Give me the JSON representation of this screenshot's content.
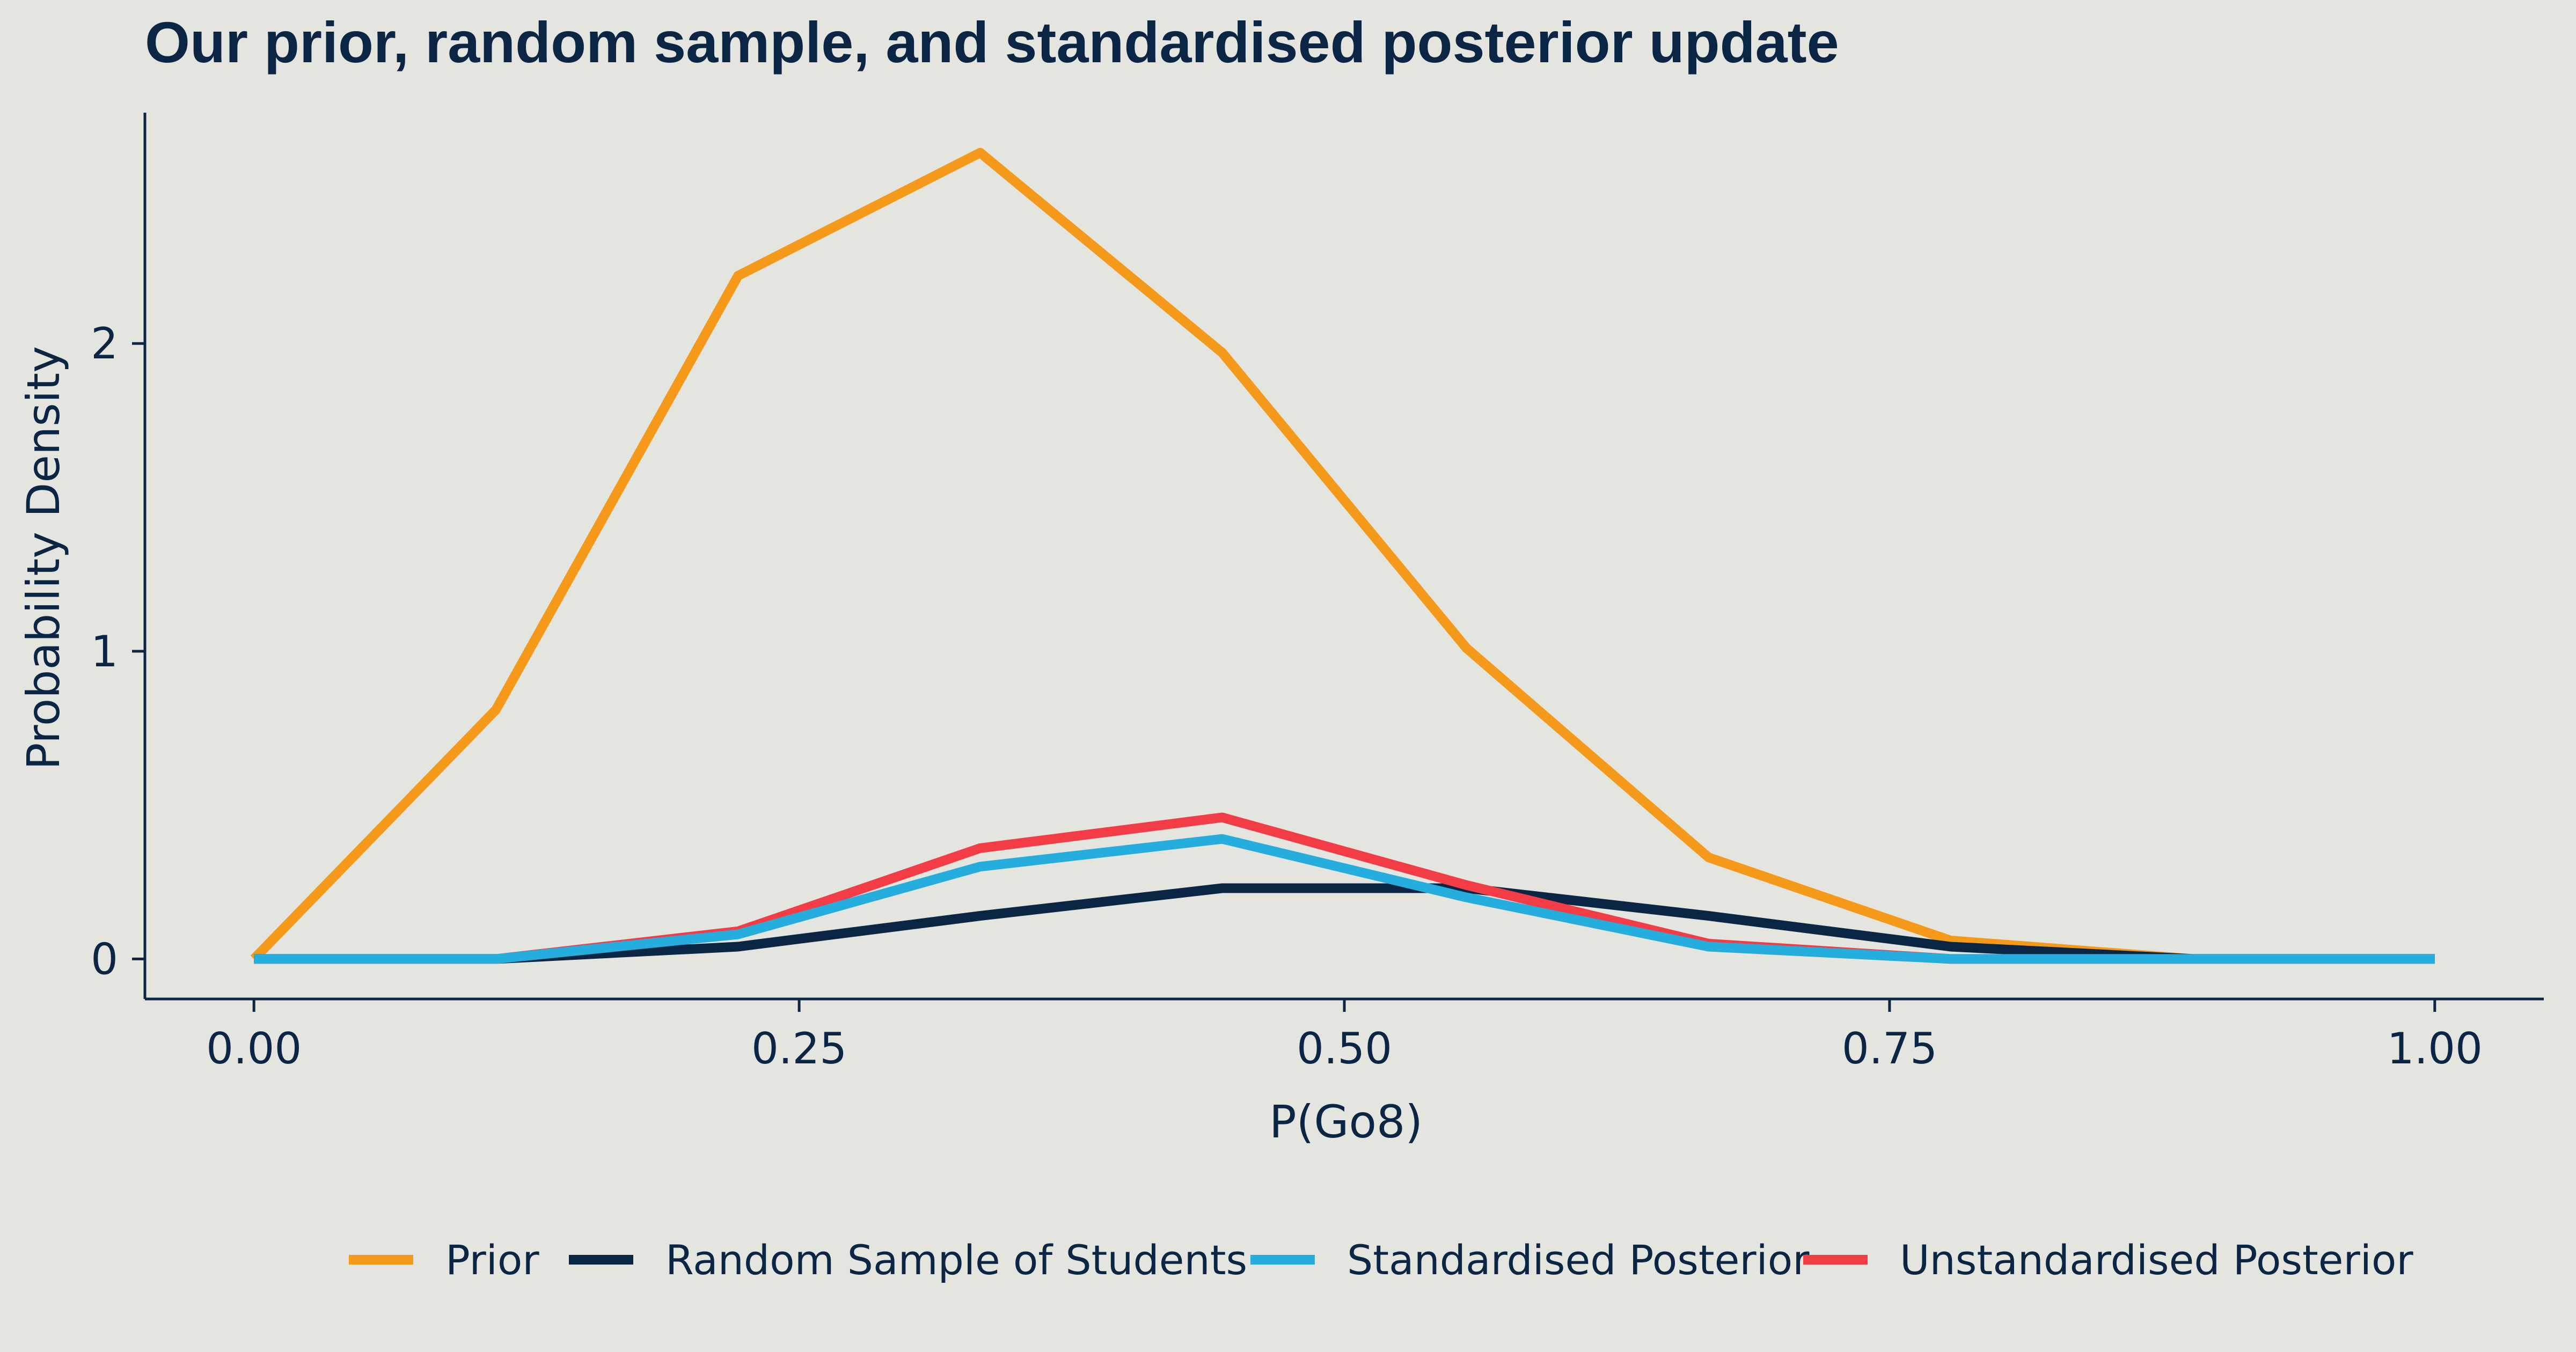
{
  "chart_data": {
    "type": "line",
    "title": "Our prior, random sample, and standardised posterior update",
    "xlabel": "P(Go8)",
    "ylabel": "Probability Density",
    "xlim": [
      -0.05,
      1.05
    ],
    "ylim": [
      -0.13,
      2.75
    ],
    "x_ticks": [
      0.0,
      0.25,
      0.5,
      0.75,
      1.0
    ],
    "x_tick_labels": [
      "0.00",
      "0.25",
      "0.50",
      "0.75",
      "1.00"
    ],
    "y_ticks": [
      0,
      1,
      2
    ],
    "y_tick_labels": [
      "0",
      "1",
      "2"
    ],
    "legend_position": "bottom",
    "grid": false,
    "series": [
      {
        "name": "Prior",
        "color": "#F4991A",
        "x": [
          0.0,
          0.111,
          0.222,
          0.333,
          0.444,
          0.556,
          0.667,
          0.778,
          0.889,
          1.0
        ],
        "y": [
          0.0,
          0.81,
          2.22,
          2.62,
          1.97,
          1.01,
          0.33,
          0.06,
          0.0,
          0.0
        ]
      },
      {
        "name": "Random Sample of Students",
        "color": "#0B2545",
        "x": [
          0.0,
          0.111,
          0.222,
          0.333,
          0.444,
          0.556,
          0.667,
          0.778,
          0.889,
          1.0
        ],
        "y": [
          0.0,
          0.0,
          0.04,
          0.14,
          0.23,
          0.23,
          0.14,
          0.04,
          0.0,
          0.0
        ]
      },
      {
        "name": "Standardised Posterior",
        "color": "#25AEDD",
        "x": [
          0.0,
          0.111,
          0.222,
          0.333,
          0.444,
          0.556,
          0.667,
          0.778,
          0.889,
          1.0
        ],
        "y": [
          0.0,
          0.0,
          0.08,
          0.3,
          0.39,
          0.2,
          0.04,
          0.0,
          0.0,
          0.0
        ]
      },
      {
        "name": "Unstandardised Posterior",
        "color": "#F23D47",
        "x": [
          0.0,
          0.111,
          0.222,
          0.333,
          0.444,
          0.556,
          0.667,
          0.778,
          0.889,
          1.0
        ],
        "y": [
          0.0,
          0.0,
          0.09,
          0.36,
          0.46,
          0.24,
          0.05,
          0.0,
          0.0,
          0.0
        ]
      }
    ],
    "draw_order": [
      "Prior",
      "Random Sample of Students",
      "Unstandardised Posterior",
      "Standardised Posterior"
    ]
  }
}
